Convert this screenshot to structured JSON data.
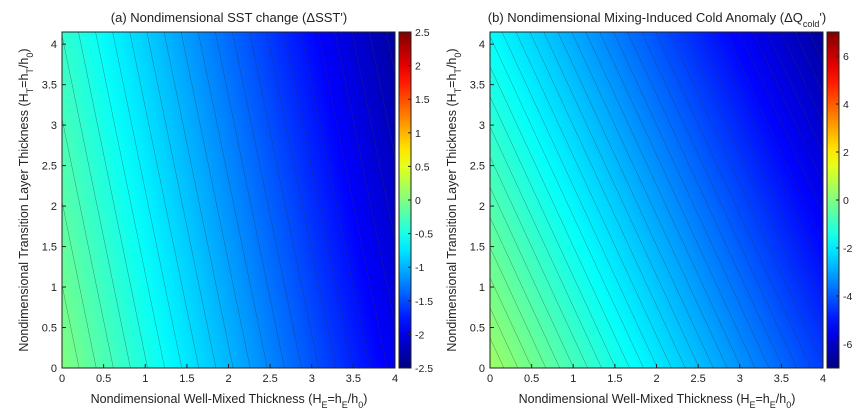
{
  "chart_data": [
    {
      "type": "heatmap",
      "title_main": "(a) Nondimensional SST change (",
      "title_sym": "ΔSST'",
      "title_end": ")",
      "xlabel_main": "Nondimensional Well-Mixed Thickness (H",
      "xlabel_sub1": "E",
      "xlabel_mid": "=h",
      "xlabel_sub2": "E",
      "xlabel_end": "/h",
      "xlabel_sub3": "0",
      "xlabel_close": ")",
      "ylabel_main": "Nondimensional Transition Layer Thickness (H",
      "ylabel_sub1": "T",
      "ylabel_mid": "=h",
      "ylabel_sub2": "T",
      "ylabel_end": "/h",
      "ylabel_sub3": "0",
      "ylabel_close": ")",
      "xlim": [
        0,
        4
      ],
      "ylim": [
        0,
        4.15
      ],
      "x_ticks": [
        "0",
        "0.5",
        "1",
        "1.5",
        "2",
        "2.5",
        "3",
        "3.5",
        "4"
      ],
      "y_ticks": [
        "0",
        "0.5",
        "1",
        "1.5",
        "2",
        "2.5",
        "3",
        "3.5",
        "4"
      ],
      "colorbar": {
        "min": -2.5,
        "max": 2.5,
        "ticks": [
          "2.5",
          "2",
          "1.5",
          "1",
          "0.5",
          "0",
          "-0.5",
          "-1",
          "-1.5",
          "-2",
          "-2.5"
        ]
      },
      "value_range_shown": [
        0,
        -2.35
      ],
      "contour_interval": 0.1,
      "colormap": "jet"
    },
    {
      "type": "heatmap",
      "title_main": "(b) Nondimensional Mixing-Induced Cold Anomaly (",
      "title_sym": "ΔQ",
      "title_sub": "cold",
      "title_end": "')",
      "xlabel_main": "Nondimensional Well-Mixed Thickness (H",
      "xlabel_sub1": "E",
      "xlabel_mid": "=h",
      "xlabel_sub2": "E",
      "xlabel_end": "/h",
      "xlabel_sub3": "0",
      "xlabel_close": ")",
      "ylabel_main": "Nondimensional Transition Layer Thickness (H",
      "ylabel_sub1": "T",
      "ylabel_mid": "=h",
      "ylabel_sub2": "T",
      "ylabel_end": "/h",
      "ylabel_sub3": "0",
      "ylabel_close": ")",
      "xlim": [
        0,
        4
      ],
      "ylim": [
        0,
        4.15
      ],
      "x_ticks": [
        "0",
        "0.5",
        "1",
        "1.5",
        "2",
        "2.5",
        "3",
        "3.5",
        "4"
      ],
      "y_ticks": [
        "0",
        "0.5",
        "1",
        "1.5",
        "2",
        "2.5",
        "3",
        "3.5",
        "4"
      ],
      "colorbar": {
        "min": -7,
        "max": 7,
        "ticks": [
          "6",
          "4",
          "2",
          "0",
          "-2",
          "-4",
          "-6"
        ]
      },
      "value_range_shown": [
        0.4,
        -6.6
      ],
      "contour_interval": 0.2,
      "colormap": "jet"
    }
  ]
}
